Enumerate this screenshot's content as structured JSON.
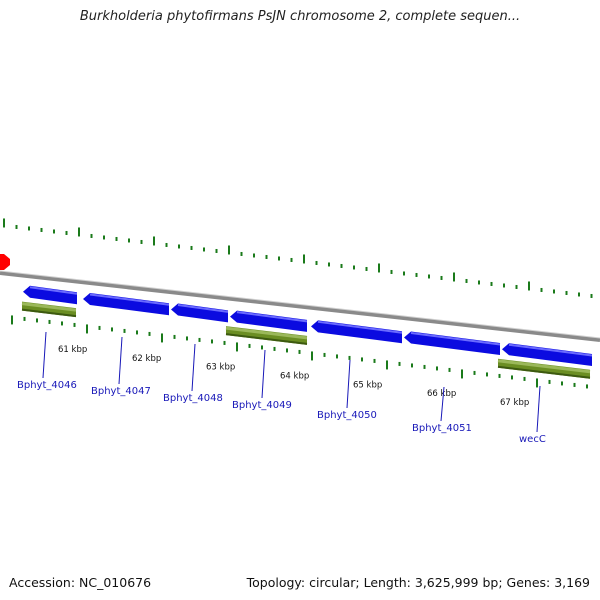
{
  "title": "Burkholderia phytofirmans PsJN chromosome 2, complete sequen...",
  "accession": "Accession: NC_010676",
  "stats": "Topology: circular; Length: 3,625,999 bp; Genes: 3,169",
  "colors": {
    "backbone": "#8a8a8a",
    "gene_arrow": "#0b0be0",
    "gene_arrow_top": "#6a6aff",
    "cds_bar": "#6b8e23",
    "cds_bar_top": "#9bb85a",
    "tick": "#1a7a1a",
    "label": "#1818b8",
    "origin_marker": "#ff0000"
  },
  "ticks": [
    {
      "label": "61 kbp",
      "kb": 61
    },
    {
      "label": "62 kbp",
      "kb": 62
    },
    {
      "label": "63 kbp",
      "kb": 63
    },
    {
      "label": "64 kbp",
      "kb": 64
    },
    {
      "label": "65 kbp",
      "kb": 65
    },
    {
      "label": "66 kbp",
      "kb": 66
    },
    {
      "label": "67 kbp",
      "kb": 67
    }
  ],
  "genes": [
    {
      "name": "Bphyt_4046",
      "strand": "-",
      "cds": true
    },
    {
      "name": "Bphyt_4047",
      "strand": "-",
      "cds": false
    },
    {
      "name": "Bphyt_4048",
      "strand": "-",
      "cds": false
    },
    {
      "name": "Bphyt_4049",
      "strand": "-",
      "cds": true
    },
    {
      "name": "Bphyt_4050",
      "strand": "-",
      "cds": false
    },
    {
      "name": "Bphyt_4051",
      "strand": "-",
      "cds": false
    },
    {
      "name": "wecC",
      "strand": "-",
      "cds": true
    }
  ]
}
